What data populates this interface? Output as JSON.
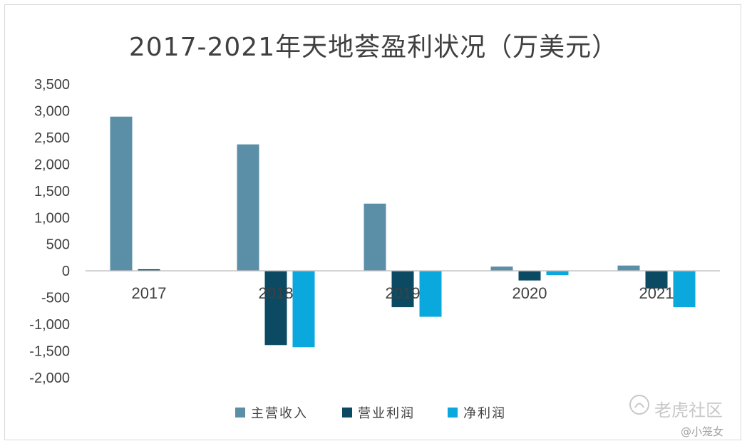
{
  "chart_data": {
    "type": "bar",
    "title": "2017-2021年天地荟盈利状况（万美元）",
    "categories": [
      "2017",
      "2018",
      "2019",
      "2020",
      "2021"
    ],
    "series": [
      {
        "name": "主营收入",
        "color": "#5b8fa8",
        "values": [
          2890,
          2370,
          1260,
          80,
          100
        ]
      },
      {
        "name": "营业利润",
        "color": "#0b4a62",
        "values": [
          30,
          -1390,
          -680,
          -180,
          -330
        ]
      },
      {
        "name": "净利润",
        "color": "#0aa8dc",
        "values": [
          0,
          -1430,
          -860,
          -80,
          -680
        ]
      }
    ],
    "ylim": [
      -2000,
      3500
    ],
    "yticks": [
      3500,
      3000,
      2500,
      2000,
      1500,
      1000,
      500,
      0,
      -500,
      -1000,
      -1500,
      -2000
    ],
    "ytick_labels": [
      "3,500",
      "3,000",
      "2,500",
      "2,000",
      "1,500",
      "1,000",
      "500",
      "0",
      "-500",
      "-1,000",
      "-1,500",
      "-2,000"
    ],
    "grid": false,
    "legend_position": "bottom"
  },
  "watermark": {
    "brand": "老虎社区",
    "author": "@小笼女",
    "logo_icon": "tiger-paw-icon"
  }
}
